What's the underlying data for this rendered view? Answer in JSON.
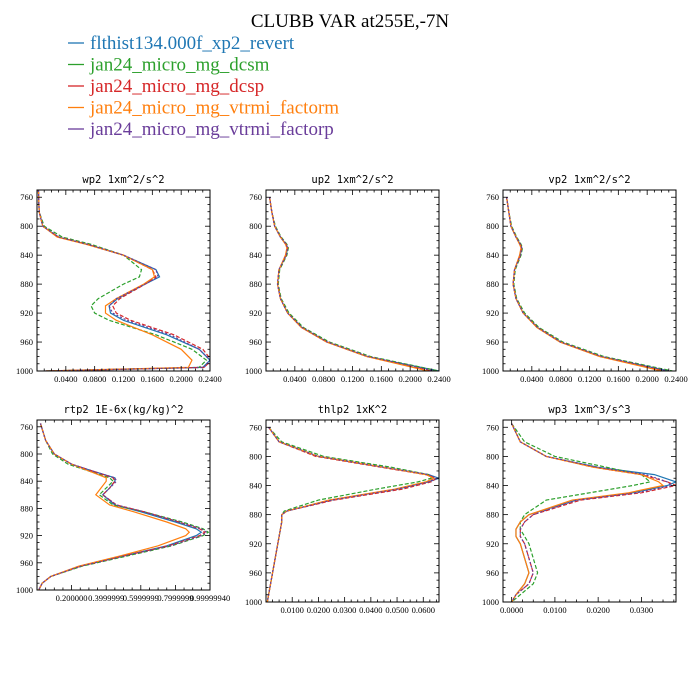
{
  "title": "CLUBB VAR at255E,-7N",
  "series_styles": [
    {
      "name": "flthist134.000f_xp2_revert",
      "color": "#1f77b4",
      "dash": "none"
    },
    {
      "name": "jan24_micro_mg_dcsm",
      "color": "#2ca02c",
      "dash": "4,2"
    },
    {
      "name": "jan24_micro_mg_dcsp",
      "color": "#d62728",
      "dash": "4,2"
    },
    {
      "name": "jan24_micro_mg_vtrmi_factorm",
      "color": "#ff7f0e",
      "dash": "none"
    },
    {
      "name": "jan24_micro_mg_vtrmi_factorp",
      "color": "#6a3d9a",
      "dash": "2,2"
    }
  ],
  "chart_data": [
    {
      "type": "line",
      "title": "wp2   1xm^2/s^2",
      "xlim": [
        0,
        0.24
      ],
      "ylim": [
        750,
        1000
      ],
      "yticks": [
        760,
        800,
        840,
        880,
        920,
        960,
        1000
      ],
      "ytick_labels": [
        "760",
        "800",
        "840",
        "880",
        "920",
        "960",
        "1000"
      ],
      "xticks": [
        0.04,
        0.08,
        0.12,
        0.16,
        0.2,
        0.24
      ],
      "xtick_labels": [
        "0.0400",
        "0.0800",
        "0.1200",
        "0.1600",
        "0.2000",
        "0.2400"
      ],
      "y": [
        750,
        780,
        800,
        815,
        825,
        840,
        860,
        870,
        880,
        900,
        910,
        920,
        930,
        950,
        970,
        985,
        995,
        1000
      ],
      "series": [
        {
          "name": "flthist134.000f_xp2_revert",
          "values": [
            0.002,
            0.003,
            0.008,
            0.03,
            0.07,
            0.12,
            0.165,
            0.17,
            0.15,
            0.112,
            0.1,
            0.102,
            0.12,
            0.18,
            0.225,
            0.24,
            0.23,
            0.012
          ]
        },
        {
          "name": "jan24_micro_mg_dcsm",
          "values": [
            0.002,
            0.003,
            0.01,
            0.035,
            0.075,
            0.12,
            0.145,
            0.142,
            0.12,
            0.085,
            0.075,
            0.08,
            0.1,
            0.165,
            0.215,
            0.235,
            0.225,
            0.012
          ]
        },
        {
          "name": "jan24_micro_mg_dcsp",
          "values": [
            0.002,
            0.003,
            0.008,
            0.03,
            0.07,
            0.12,
            0.16,
            0.165,
            0.15,
            0.115,
            0.105,
            0.11,
            0.13,
            0.19,
            0.23,
            0.242,
            0.232,
            0.012
          ]
        },
        {
          "name": "jan24_micro_mg_vtrmi_factorm",
          "values": [
            0.002,
            0.003,
            0.008,
            0.028,
            0.068,
            0.12,
            0.16,
            0.163,
            0.148,
            0.11,
            0.095,
            0.095,
            0.11,
            0.16,
            0.2,
            0.215,
            0.21,
            0.012
          ]
        },
        {
          "name": "jan24_micro_mg_vtrmi_factorp",
          "values": [
            0.002,
            0.003,
            0.008,
            0.03,
            0.07,
            0.12,
            0.165,
            0.168,
            0.15,
            0.11,
            0.1,
            0.105,
            0.125,
            0.185,
            0.225,
            0.24,
            0.232,
            0.012
          ]
        }
      ]
    },
    {
      "type": "line",
      "title": "up2   1xm^2/s^2",
      "xlim": [
        0,
        0.24
      ],
      "ylim": [
        750,
        1000
      ],
      "yticks": [
        760,
        800,
        840,
        880,
        920,
        960,
        1000
      ],
      "ytick_labels": [
        "760",
        "800",
        "840",
        "880",
        "920",
        "960",
        "1000"
      ],
      "xticks": [
        0.04,
        0.08,
        0.12,
        0.16,
        0.2,
        0.24
      ],
      "xtick_labels": [
        "0.0400",
        "0.0800",
        "0.1200",
        "0.1600",
        "0.2000",
        "0.2400"
      ],
      "y": [
        760,
        780,
        800,
        815,
        825,
        830,
        840,
        860,
        880,
        900,
        920,
        940,
        960,
        980,
        1000
      ],
      "series": [
        {
          "name": "flthist134.000f_xp2_revert",
          "values": [
            0.005,
            0.008,
            0.012,
            0.02,
            0.028,
            0.03,
            0.028,
            0.018,
            0.016,
            0.02,
            0.03,
            0.05,
            0.085,
            0.14,
            0.24
          ]
        },
        {
          "name": "jan24_micro_mg_dcsm",
          "values": [
            0.005,
            0.008,
            0.013,
            0.021,
            0.029,
            0.031,
            0.029,
            0.019,
            0.017,
            0.021,
            0.032,
            0.052,
            0.088,
            0.145,
            0.24
          ]
        },
        {
          "name": "jan24_micro_mg_dcsp",
          "values": [
            0.005,
            0.008,
            0.012,
            0.02,
            0.028,
            0.03,
            0.028,
            0.018,
            0.016,
            0.02,
            0.03,
            0.05,
            0.085,
            0.14,
            0.23
          ]
        },
        {
          "name": "jan24_micro_mg_vtrmi_factorm",
          "values": [
            0.005,
            0.008,
            0.012,
            0.02,
            0.027,
            0.029,
            0.027,
            0.018,
            0.016,
            0.02,
            0.03,
            0.049,
            0.084,
            0.14,
            0.225
          ]
        },
        {
          "name": "jan24_micro_mg_vtrmi_factorp",
          "values": [
            0.005,
            0.008,
            0.012,
            0.02,
            0.028,
            0.03,
            0.028,
            0.018,
            0.016,
            0.02,
            0.03,
            0.05,
            0.085,
            0.142,
            0.235
          ]
        }
      ]
    },
    {
      "type": "line",
      "title": "vp2   1xm^2/s^2",
      "xlim": [
        0,
        0.24
      ],
      "ylim": [
        750,
        1000
      ],
      "yticks": [
        760,
        800,
        840,
        880,
        920,
        960,
        1000
      ],
      "ytick_labels": [
        "760",
        "800",
        "840",
        "880",
        "920",
        "960",
        "1000"
      ],
      "xticks": [
        0.04,
        0.08,
        0.12,
        0.16,
        0.2,
        0.24
      ],
      "xtick_labels": [
        "0.0400",
        "0.0800",
        "0.1200",
        "0.1600",
        "0.2000",
        "0.2400"
      ],
      "y": [
        760,
        780,
        800,
        815,
        825,
        830,
        840,
        860,
        880,
        900,
        920,
        940,
        960,
        980,
        1000
      ],
      "series": [
        {
          "name": "flthist134.000f_xp2_revert",
          "values": [
            0.005,
            0.008,
            0.011,
            0.018,
            0.024,
            0.026,
            0.024,
            0.016,
            0.014,
            0.018,
            0.028,
            0.048,
            0.08,
            0.135,
            0.23
          ]
        },
        {
          "name": "jan24_micro_mg_dcsm",
          "values": [
            0.005,
            0.008,
            0.012,
            0.019,
            0.025,
            0.027,
            0.025,
            0.017,
            0.015,
            0.019,
            0.03,
            0.05,
            0.083,
            0.14,
            0.235
          ]
        },
        {
          "name": "jan24_micro_mg_dcsp",
          "values": [
            0.005,
            0.008,
            0.011,
            0.018,
            0.024,
            0.026,
            0.024,
            0.016,
            0.014,
            0.018,
            0.028,
            0.048,
            0.08,
            0.135,
            0.225
          ]
        },
        {
          "name": "jan24_micro_mg_vtrmi_factorm",
          "values": [
            0.005,
            0.008,
            0.011,
            0.018,
            0.023,
            0.025,
            0.023,
            0.016,
            0.014,
            0.018,
            0.028,
            0.047,
            0.079,
            0.134,
            0.22
          ]
        },
        {
          "name": "jan24_micro_mg_vtrmi_factorp",
          "values": [
            0.005,
            0.008,
            0.011,
            0.018,
            0.024,
            0.026,
            0.024,
            0.016,
            0.014,
            0.018,
            0.028,
            0.048,
            0.08,
            0.137,
            0.23
          ]
        }
      ]
    },
    {
      "type": "line",
      "title": "rtp2   1E-6x(kg/kg)^2",
      "xlim": [
        0,
        1.0
      ],
      "ylim": [
        750,
        1000
      ],
      "yticks": [
        760,
        800,
        840,
        880,
        920,
        960,
        1000
      ],
      "ytick_labels": [
        "760",
        "800",
        "840",
        "880",
        "920",
        "960",
        "1000"
      ],
      "xticks": [
        0.2,
        0.4,
        0.6,
        0.8,
        1.0
      ],
      "xtick_labels": [
        "0.200000",
        "0.3999999",
        "0.5999999",
        "0.7999999",
        "0.99999940"
      ],
      "y": [
        755,
        780,
        800,
        815,
        825,
        835,
        840,
        850,
        860,
        875,
        885,
        900,
        910,
        915,
        920,
        935,
        950,
        965,
        980,
        990,
        1000
      ],
      "series": [
        {
          "name": "flthist134.000f_xp2_revert",
          "values": [
            0.02,
            0.05,
            0.1,
            0.2,
            0.32,
            0.45,
            0.45,
            0.42,
            0.38,
            0.45,
            0.6,
            0.8,
            0.92,
            0.95,
            0.92,
            0.75,
            0.5,
            0.25,
            0.08,
            0.03,
            0.01
          ]
        },
        {
          "name": "jan24_micro_mg_dcsm",
          "values": [
            0.02,
            0.05,
            0.09,
            0.18,
            0.3,
            0.42,
            0.44,
            0.4,
            0.36,
            0.44,
            0.62,
            0.84,
            0.96,
            0.99,
            0.96,
            0.78,
            0.52,
            0.26,
            0.08,
            0.03,
            0.01
          ]
        },
        {
          "name": "jan24_micro_mg_dcsp",
          "values": [
            0.02,
            0.05,
            0.1,
            0.2,
            0.32,
            0.44,
            0.45,
            0.42,
            0.38,
            0.46,
            0.62,
            0.82,
            0.94,
            0.97,
            0.94,
            0.76,
            0.5,
            0.25,
            0.08,
            0.03,
            0.01
          ]
        },
        {
          "name": "jan24_micro_mg_vtrmi_factorm",
          "values": [
            0.02,
            0.05,
            0.1,
            0.2,
            0.3,
            0.4,
            0.4,
            0.37,
            0.34,
            0.42,
            0.56,
            0.75,
            0.86,
            0.88,
            0.86,
            0.7,
            0.48,
            0.24,
            0.08,
            0.03,
            0.01
          ]
        },
        {
          "name": "jan24_micro_mg_vtrmi_factorp",
          "values": [
            0.02,
            0.05,
            0.1,
            0.2,
            0.32,
            0.45,
            0.46,
            0.42,
            0.38,
            0.46,
            0.62,
            0.82,
            0.95,
            0.98,
            0.95,
            0.77,
            0.5,
            0.25,
            0.08,
            0.03,
            0.01
          ]
        }
      ]
    },
    {
      "type": "line",
      "title": "thlp2   1xK^2",
      "xlim": [
        0,
        0.066
      ],
      "ylim": [
        750,
        1000
      ],
      "yticks": [
        760,
        800,
        840,
        880,
        920,
        960,
        1000
      ],
      "ytick_labels": [
        "760",
        "800",
        "840",
        "880",
        "920",
        "960",
        "1000"
      ],
      "xticks": [
        0.01,
        0.02,
        0.03,
        0.04,
        0.05,
        0.06
      ],
      "xtick_labels": [
        "0.0100",
        "0.0200",
        "0.0300",
        "0.0400",
        "0.0500",
        "0.0600"
      ],
      "y": [
        760,
        780,
        800,
        815,
        825,
        830,
        835,
        845,
        860,
        875,
        880,
        890,
        910,
        930,
        950,
        970,
        990,
        1000
      ],
      "series": [
        {
          "name": "flthist134.000f_xp2_revert",
          "values": [
            0.001,
            0.005,
            0.02,
            0.045,
            0.062,
            0.066,
            0.062,
            0.05,
            0.025,
            0.008,
            0.006,
            0.006,
            0.005,
            0.004,
            0.003,
            0.002,
            0.001,
            0.0005
          ]
        },
        {
          "name": "jan24_micro_mg_dcsm",
          "values": [
            0.001,
            0.006,
            0.022,
            0.048,
            0.062,
            0.063,
            0.058,
            0.042,
            0.02,
            0.007,
            0.006,
            0.006,
            0.005,
            0.004,
            0.003,
            0.002,
            0.001,
            0.0005
          ]
        },
        {
          "name": "jan24_micro_mg_dcsp",
          "values": [
            0.001,
            0.005,
            0.019,
            0.044,
            0.061,
            0.065,
            0.063,
            0.052,
            0.026,
            0.008,
            0.006,
            0.006,
            0.005,
            0.004,
            0.003,
            0.002,
            0.001,
            0.0005
          ]
        },
        {
          "name": "jan24_micro_mg_vtrmi_factorm",
          "values": [
            0.001,
            0.005,
            0.02,
            0.045,
            0.061,
            0.064,
            0.061,
            0.049,
            0.024,
            0.008,
            0.006,
            0.006,
            0.005,
            0.004,
            0.003,
            0.002,
            0.001,
            0.0005
          ]
        },
        {
          "name": "jan24_micro_mg_vtrmi_factorp",
          "values": [
            0.001,
            0.005,
            0.02,
            0.045,
            0.062,
            0.065,
            0.062,
            0.05,
            0.025,
            0.008,
            0.006,
            0.006,
            0.005,
            0.004,
            0.003,
            0.002,
            0.001,
            0.0005
          ]
        }
      ]
    },
    {
      "type": "line",
      "title": "wp3   1xm^3/s^3",
      "xlim": [
        -0.002,
        0.038
      ],
      "ylim": [
        750,
        1000
      ],
      "yticks": [
        760,
        800,
        840,
        880,
        920,
        960,
        1000
      ],
      "ytick_labels": [
        "760",
        "800",
        "840",
        "880",
        "920",
        "960",
        "1000"
      ],
      "xticks": [
        0.0,
        0.01,
        0.02,
        0.03
      ],
      "xtick_labels": [
        "0.0000",
        "0.0100",
        "0.0200",
        "0.0300"
      ],
      "y": [
        755,
        780,
        800,
        815,
        825,
        835,
        840,
        850,
        860,
        880,
        890,
        900,
        910,
        920,
        940,
        960,
        975,
        990,
        1000
      ],
      "series": [
        {
          "name": "flthist134.000f_xp2_revert",
          "values": [
            0.0,
            0.002,
            0.008,
            0.02,
            0.033,
            0.038,
            0.036,
            0.028,
            0.015,
            0.004,
            0.002,
            0.001,
            0.001,
            0.002,
            0.003,
            0.004,
            0.003,
            0.001,
            0.0
          ]
        },
        {
          "name": "jan24_micro_mg_dcsm",
          "values": [
            0.0,
            0.003,
            0.01,
            0.022,
            0.03,
            0.032,
            0.028,
            0.018,
            0.008,
            0.003,
            0.002,
            0.002,
            0.003,
            0.004,
            0.005,
            0.006,
            0.005,
            0.002,
            0.0
          ]
        },
        {
          "name": "jan24_micro_mg_dcsp",
          "values": [
            0.0,
            0.002,
            0.008,
            0.019,
            0.03,
            0.036,
            0.038,
            0.03,
            0.016,
            0.005,
            0.003,
            0.002,
            0.002,
            0.003,
            0.004,
            0.005,
            0.004,
            0.001,
            0.0
          ]
        },
        {
          "name": "jan24_micro_mg_vtrmi_factorm",
          "values": [
            0.0,
            0.002,
            0.008,
            0.019,
            0.03,
            0.034,
            0.035,
            0.027,
            0.014,
            0.004,
            0.002,
            0.001,
            0.001,
            0.002,
            0.003,
            0.004,
            0.003,
            0.001,
            0.0
          ]
        },
        {
          "name": "jan24_micro_mg_vtrmi_factorp",
          "values": [
            0.0,
            0.002,
            0.008,
            0.02,
            0.031,
            0.036,
            0.037,
            0.029,
            0.015,
            0.005,
            0.003,
            0.002,
            0.002,
            0.003,
            0.004,
            0.005,
            0.004,
            0.001,
            0.0
          ]
        }
      ]
    }
  ]
}
